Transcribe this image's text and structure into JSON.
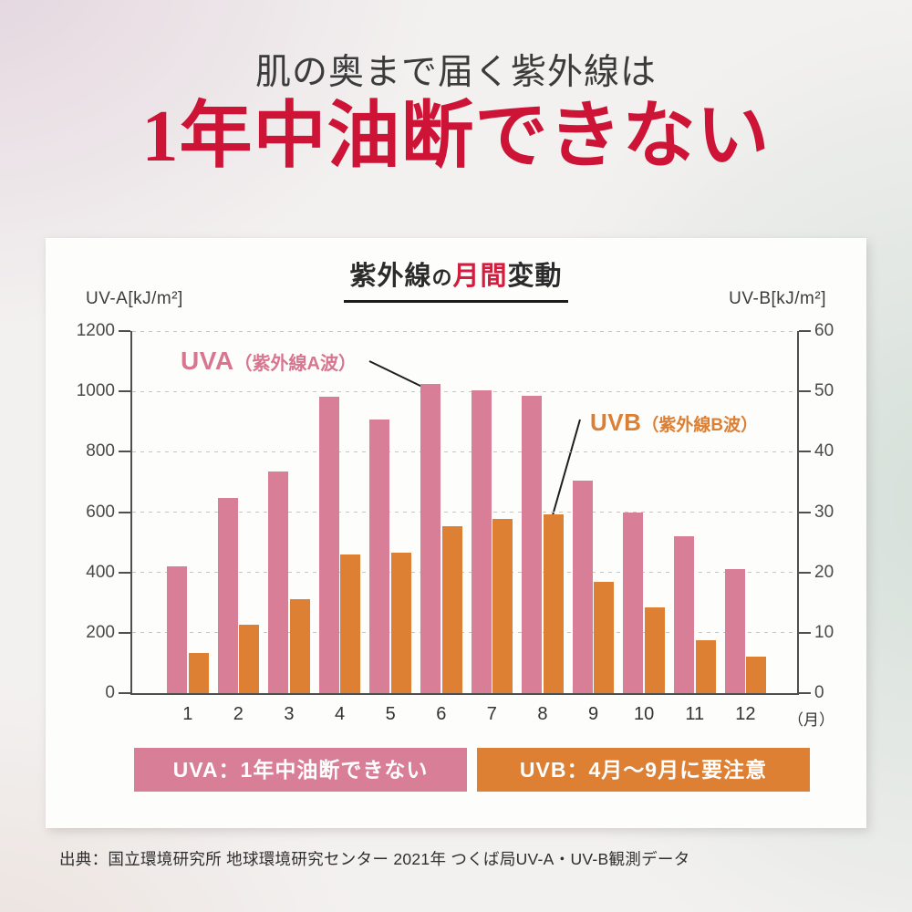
{
  "header": {
    "subtitle": "肌の奥まで届く紫外線は",
    "title": "1年中油断できない"
  },
  "card": {
    "title": {
      "pre": "紫外線",
      "kana": "の",
      "highlight": "月間",
      "post": "変動"
    }
  },
  "annotations": {
    "uva": {
      "big": "UVA",
      "small": "（紫外線A波）"
    },
    "uvb": {
      "big": "UVB",
      "small": "（紫外線B波）"
    }
  },
  "legend": {
    "uva": {
      "text": "UVA：1年中油断できない",
      "color": "#d87e97"
    },
    "uvb": {
      "text": "UVB：4月〜9月に要注意",
      "color": "#dd8034"
    }
  },
  "source": "出典：国立環境研究所 地球環境研究センター 2021年 つくば局UV-A・UV-B観測データ",
  "colors": {
    "uva_bar": "#d87e97",
    "uvb_bar": "#dd8034",
    "headline_red": "#cd1437",
    "title_highlight_red": "#d31d3e",
    "uva_label": "#d8758f",
    "uvb_label": "#dd7f33",
    "axis": "#4f4f4f",
    "grid": "#c7c6c4"
  },
  "chart_data": {
    "type": "bar",
    "title": "紫外線の月間変動",
    "categories": [
      "1",
      "2",
      "3",
      "4",
      "5",
      "6",
      "7",
      "8",
      "9",
      "10",
      "11",
      "12"
    ],
    "x_unit": "（月）",
    "series": [
      {
        "name": "UVA",
        "label": "UVA（紫外線A波）",
        "axis": "left",
        "color": "#d87e97",
        "values": [
          420,
          648,
          735,
          982,
          906,
          1026,
          1004,
          986,
          705,
          600,
          520,
          410
        ]
      },
      {
        "name": "UVB",
        "label": "UVB（紫外線B波）",
        "axis": "right",
        "color": "#dd8034",
        "values": [
          6.7,
          11.4,
          15.5,
          22.9,
          23.3,
          27.6,
          28.8,
          29.7,
          18.4,
          14.2,
          8.7,
          6.1
        ]
      }
    ],
    "left_axis": {
      "unit": "UV-A[kJ/m²]",
      "min": 0,
      "max": 1200,
      "step": 200,
      "ticks": [
        0,
        200,
        400,
        600,
        800,
        1000,
        1200
      ]
    },
    "right_axis": {
      "unit": "UV-B[kJ/m²]",
      "min": 0,
      "max": 60,
      "step": 10,
      "ticks": [
        0,
        10,
        20,
        30,
        40,
        50,
        60
      ]
    },
    "grid": "horizontal-dashed",
    "legend_position": "bottom"
  }
}
